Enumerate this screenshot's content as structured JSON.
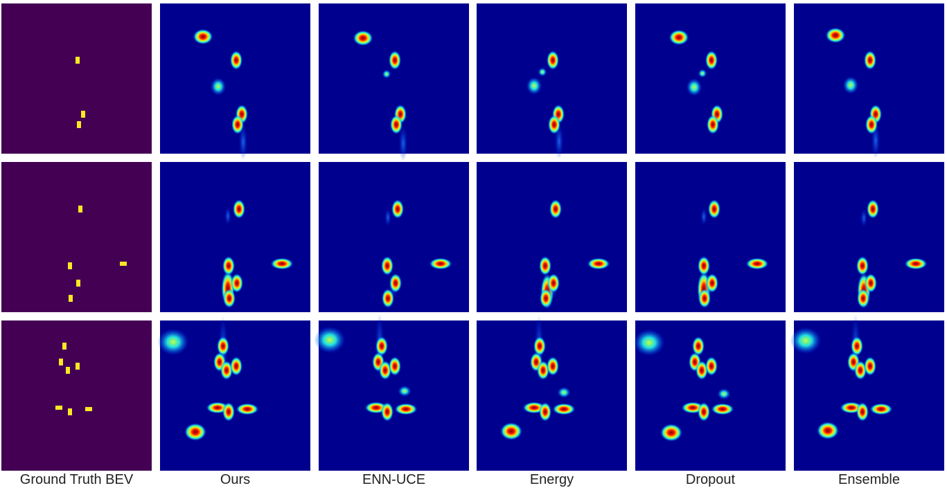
{
  "columns": [
    "Ground Truth BEV",
    "Ours",
    "ENN-UCE",
    "Energy",
    "Dropout",
    "Ensemble"
  ]
}
